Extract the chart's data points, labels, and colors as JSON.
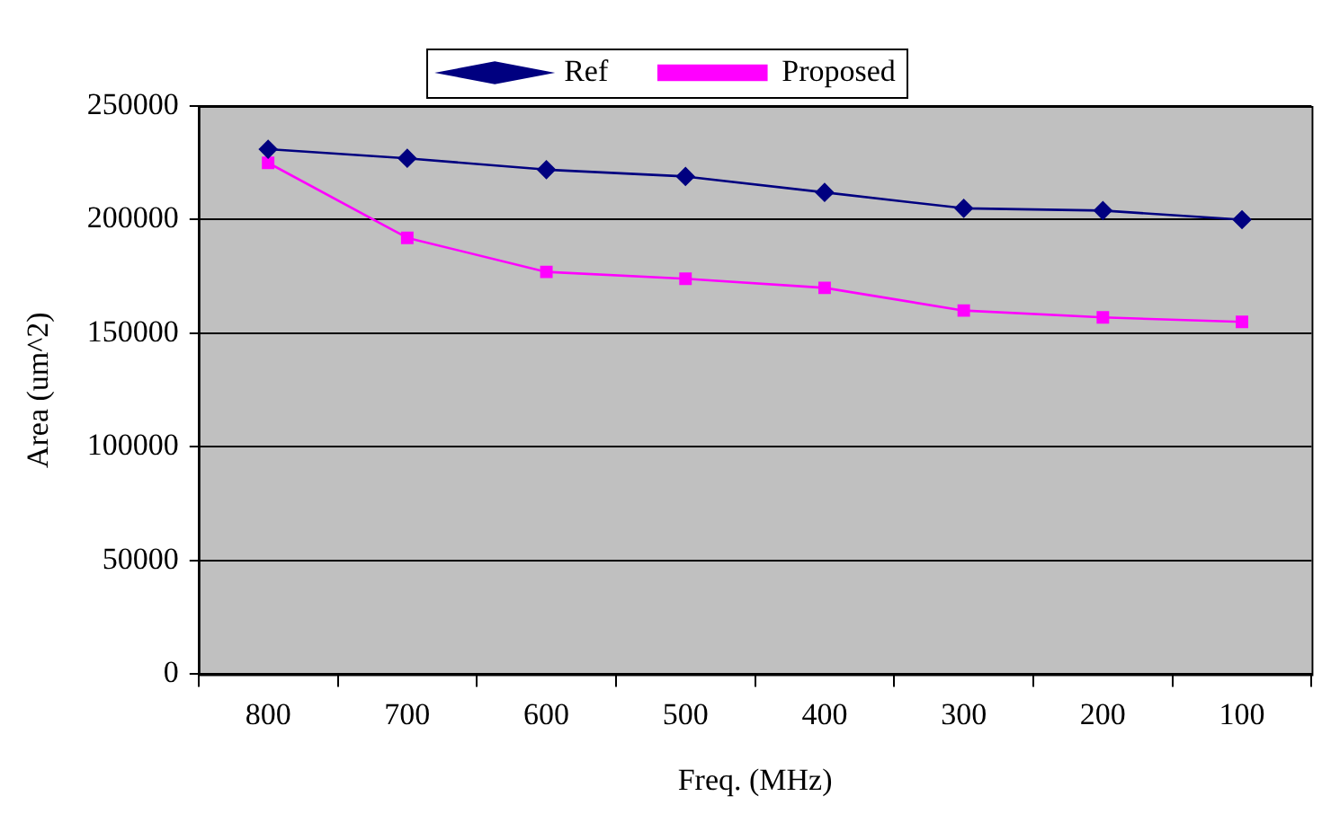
{
  "chart_data": {
    "type": "line",
    "xlabel": "Freq. (MHz)",
    "ylabel": "Area (um^2)",
    "categories": [
      "800",
      "700",
      "600",
      "500",
      "400",
      "300",
      "200",
      "100"
    ],
    "series": [
      {
        "name": "Ref",
        "color": "#000080",
        "marker": "diamond",
        "values": [
          231000,
          227000,
          222000,
          219000,
          212000,
          205000,
          204000,
          200000
        ]
      },
      {
        "name": "Proposed",
        "color": "#ff00ff",
        "marker": "square",
        "values": [
          225000,
          192000,
          177000,
          174000,
          170000,
          160000,
          157000,
          155000
        ]
      }
    ],
    "ylim": [
      0,
      250000
    ],
    "yticks": [
      0,
      50000,
      100000,
      150000,
      200000,
      250000
    ],
    "grid": "y",
    "legend": "top"
  }
}
